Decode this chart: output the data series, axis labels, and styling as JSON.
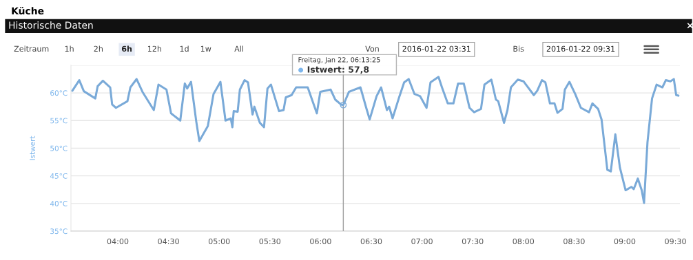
{
  "chart_data": {
    "type": "line",
    "title": "Küche",
    "subtitle": "Historische Daten",
    "ylabel": "Istwert",
    "x": [
      3.552,
      3.62,
      3.665,
      3.778,
      3.801,
      3.853,
      3.925,
      3.944,
      3.982,
      4.095,
      4.124,
      4.185,
      4.243,
      4.321,
      4.355,
      4.401,
      4.48,
      4.525,
      4.616,
      4.661,
      4.684,
      4.722,
      4.774,
      4.804,
      4.888,
      4.944,
      5.012,
      5.062,
      5.114,
      5.13,
      5.143,
      5.182,
      5.204,
      5.25,
      5.284,
      5.329,
      5.347,
      5.401,
      5.442,
      5.476,
      5.51,
      5.59,
      5.635,
      5.657,
      5.714,
      5.759,
      5.873,
      5.963,
      5.997,
      6.099,
      6.144,
      6.201,
      6.224,
      6.28,
      6.393,
      6.45,
      6.484,
      6.552,
      6.597,
      6.654,
      6.676,
      6.71,
      6.778,
      6.824,
      6.869,
      6.926,
      6.982,
      7.045,
      7.084,
      7.163,
      7.197,
      7.254,
      7.31,
      7.356,
      7.412,
      7.469,
      7.514,
      7.582,
      7.616,
      7.684,
      7.729,
      7.752,
      7.809,
      7.843,
      7.877,
      7.945,
      8.001,
      8.103,
      8.137,
      8.183,
      8.217,
      8.262,
      8.307,
      8.336,
      8.386,
      8.409,
      8.454,
      8.511,
      8.567,
      8.647,
      8.681,
      8.737,
      8.771,
      8.828,
      8.862,
      8.907,
      8.952,
      9.008,
      9.065,
      9.088,
      9.129,
      9.167,
      9.19,
      9.224,
      9.269,
      9.314,
      9.371,
      9.405,
      9.45,
      9.484,
      9.507,
      9.529
    ],
    "series": [
      {
        "color": "#7aaad8",
        "values": [
          60.4,
          62.3,
          60.3,
          59.0,
          61.2,
          62.2,
          61.0,
          57.9,
          57.3,
          58.5,
          61.0,
          62.5,
          60.2,
          57.9,
          56.9,
          61.5,
          60.6,
          56.3,
          55.0,
          61.7,
          60.8,
          62.0,
          54.8,
          51.3,
          54.0,
          59.8,
          62.0,
          55.0,
          55.4,
          53.8,
          56.7,
          56.6,
          60.6,
          62.3,
          61.9,
          56.1,
          57.5,
          54.6,
          53.8,
          60.8,
          61.5,
          56.7,
          56.9,
          59.2,
          59.6,
          61.0,
          61.0,
          56.3,
          60.2,
          60.6,
          58.8,
          57.9,
          57.8,
          60.2,
          61.0,
          57.3,
          55.2,
          59.4,
          61.0,
          56.9,
          57.5,
          55.4,
          59.4,
          61.9,
          62.5,
          59.8,
          59.4,
          57.3,
          61.9,
          62.9,
          61.0,
          58.1,
          58.1,
          61.7,
          61.7,
          57.3,
          56.5,
          57.1,
          61.5,
          62.4,
          58.8,
          58.5,
          54.6,
          56.9,
          61.0,
          62.4,
          62.1,
          59.6,
          60.4,
          62.3,
          61.9,
          58.1,
          58.1,
          56.4,
          57.1,
          60.6,
          62.0,
          59.8,
          57.3,
          56.5,
          58.1,
          57.1,
          55.2,
          46.1,
          45.8,
          52.5,
          46.5,
          42.4,
          43.0,
          42.6,
          44.5,
          42.4,
          40.1,
          51.1,
          59.0,
          61.5,
          61.0,
          62.3,
          62.1,
          62.5,
          59.6,
          59.5
        ]
      }
    ],
    "xlim": [
      3.538,
      9.543
    ],
    "xticks": [
      {
        "value": 4.0,
        "label": "04:00"
      },
      {
        "value": 4.5,
        "label": "04:30"
      },
      {
        "value": 5.0,
        "label": "05:00"
      },
      {
        "value": 5.5,
        "label": "05:30"
      },
      {
        "value": 6.0,
        "label": "06:00"
      },
      {
        "value": 6.5,
        "label": "06:30"
      },
      {
        "value": 7.0,
        "label": "07:00"
      },
      {
        "value": 7.5,
        "label": "07:30"
      },
      {
        "value": 8.0,
        "label": "08:00"
      },
      {
        "value": 8.5,
        "label": "08:30"
      },
      {
        "value": 9.0,
        "label": "09:00"
      },
      {
        "value": 9.5,
        "label": "09:30"
      }
    ],
    "ylim": [
      35,
      65
    ],
    "yticks": [
      {
        "value": 35,
        "label": "35°C"
      },
      {
        "value": 40,
        "label": "40°C"
      },
      {
        "value": 45,
        "label": "45°C"
      },
      {
        "value": 50,
        "label": "50°C"
      },
      {
        "value": 55,
        "label": "55°C"
      },
      {
        "value": 60,
        "label": "60°C"
      },
      {
        "value": 65,
        "label": null
      }
    ],
    "grid": "y",
    "marker": "none",
    "line_style": "solid",
    "ref_lines": [
      {
        "axis": "x",
        "value": 6.224,
        "color": "#a0a0a0"
      }
    ],
    "annotations": [
      "Freitag, Jan 22, 06:13:25",
      "Istwert: 57,8",
      "×",
      "Zeitraum",
      "1h",
      "2h",
      "6h",
      "12h",
      "1d",
      "1w",
      "All",
      "Von",
      "2016-01-22 03:31",
      "Bis",
      "2016-01-22 09:31"
    ]
  }
}
